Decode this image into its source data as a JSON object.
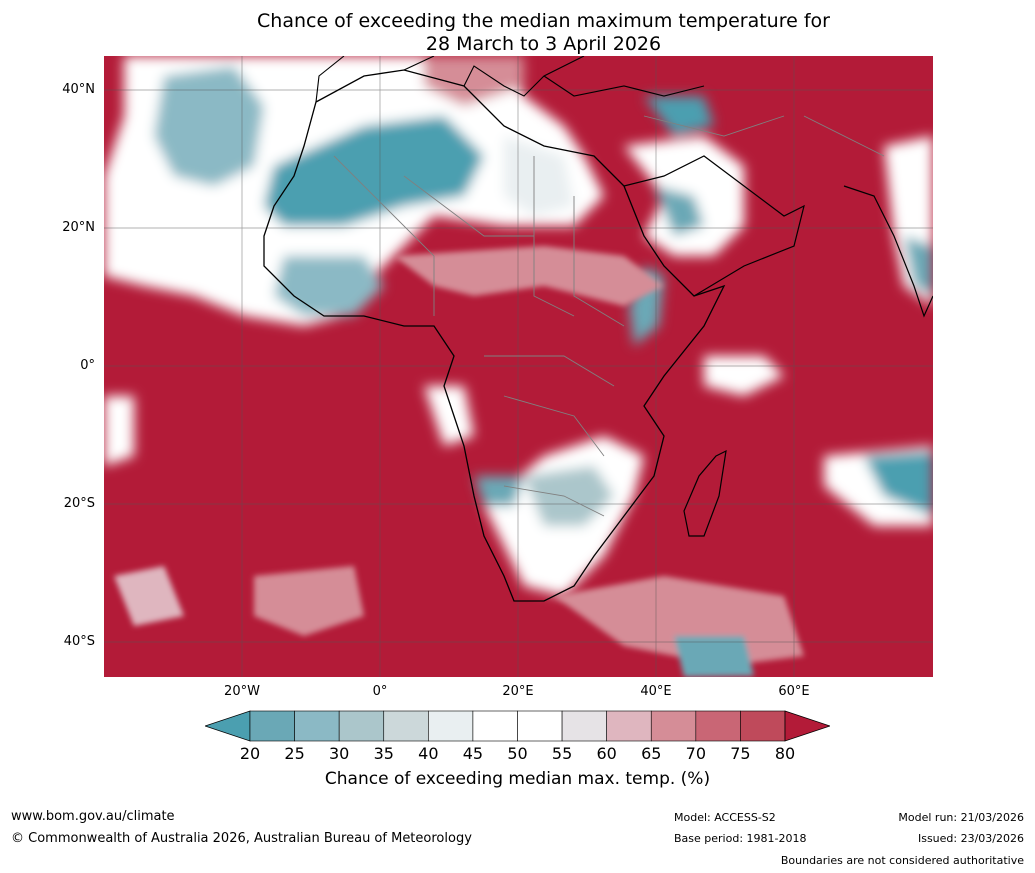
{
  "title": {
    "line1": "Chance of exceeding the median maximum temperature for",
    "line2": "28 March to 3 April 2026"
  },
  "map": {
    "lat_labels": [
      "40°N",
      "20°N",
      "0°",
      "20°S",
      "40°S"
    ],
    "lon_labels": [
      "20°W",
      "0°",
      "20°E",
      "40°E",
      "60°E"
    ],
    "colors": {
      "high": "#b31b38",
      "mid_high": "#d78a94",
      "neutral": "#ffffff",
      "low": "#4aa3b5",
      "grid": "#555555",
      "coast": "#000000",
      "border": "#808080"
    }
  },
  "colorbar": {
    "ticks": [
      "20",
      "25",
      "30",
      "35",
      "40",
      "45",
      "50",
      "55",
      "60",
      "65",
      "70",
      "75",
      "80"
    ],
    "colors": [
      "#4b9fb0",
      "#6aa8b6",
      "#8bb9c5",
      "#abc6cb",
      "#ccd8da",
      "#e9eff1",
      "#ffffff",
      "#ffffff",
      "#e6e3e6",
      "#dfb6bf",
      "#d58d97",
      "#c96675",
      "#bf4a5b",
      "#b31b38"
    ],
    "caption": "Chance of exceeding median max. temp. (%)"
  },
  "footer": {
    "website": "www.bom.gov.au/climate",
    "copyright": "© Commonwealth of Australia 2026, Australian Bureau of Meteorology",
    "model": "Model: ACCESS-S2",
    "base_period": "Base period: 1981-2018",
    "model_run": "Model run: 21/03/2026",
    "issued": "Issued: 23/03/2026",
    "disclaimer": "Boundaries are not considered authoritative"
  }
}
